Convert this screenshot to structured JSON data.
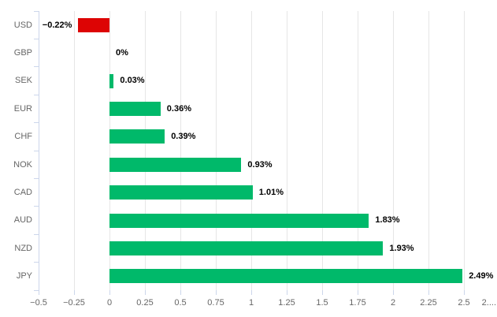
{
  "chart_data": {
    "type": "bar",
    "orientation": "horizontal",
    "title": "",
    "xlabel": "",
    "ylabel": "",
    "legend": "none",
    "grid": true,
    "categories": [
      "USD",
      "GBP",
      "SEK",
      "EUR",
      "CHF",
      "NOK",
      "CAD",
      "AUD",
      "NZD",
      "JPY"
    ],
    "values": [
      -0.22,
      0,
      0.03,
      0.36,
      0.39,
      0.93,
      1.01,
      1.83,
      1.93,
      2.49
    ],
    "value_labels": [
      "−0.22%",
      "0%",
      "0.03%",
      "0.36%",
      "0.39%",
      "0.93%",
      "1.01%",
      "1.83%",
      "1.93%",
      "2.49%"
    ],
    "xlim": [
      -0.5,
      2.7333
    ],
    "x_ticks": [
      {
        "label": "−0.5",
        "value": -0.5
      },
      {
        "label": "−0.25",
        "value": -0.25
      },
      {
        "label": "0",
        "value": 0
      },
      {
        "label": "0.25",
        "value": 0.25
      },
      {
        "label": "0.5",
        "value": 0.5
      },
      {
        "label": "0.75",
        "value": 0.75
      },
      {
        "label": "1",
        "value": 1
      },
      {
        "label": "1.25",
        "value": 1.25
      },
      {
        "label": "1.5",
        "value": 1.5
      },
      {
        "label": "1.75",
        "value": 1.75
      },
      {
        "label": "2",
        "value": 2
      },
      {
        "label": "2.25",
        "value": 2.25
      },
      {
        "label": "2.5",
        "value": 2.5
      },
      {
        "label": "2....",
        "value": 2.75,
        "clipped": true
      }
    ],
    "colors": {
      "positive": "#00b96a",
      "negative": "#dd0404",
      "gridline": "#e6e6e6",
      "axis_line": "#ccd6eb",
      "tick_mark": "#ccd6eb",
      "category_label": "#666666",
      "tick_label": "#666666",
      "value_label": "#000000"
    }
  }
}
